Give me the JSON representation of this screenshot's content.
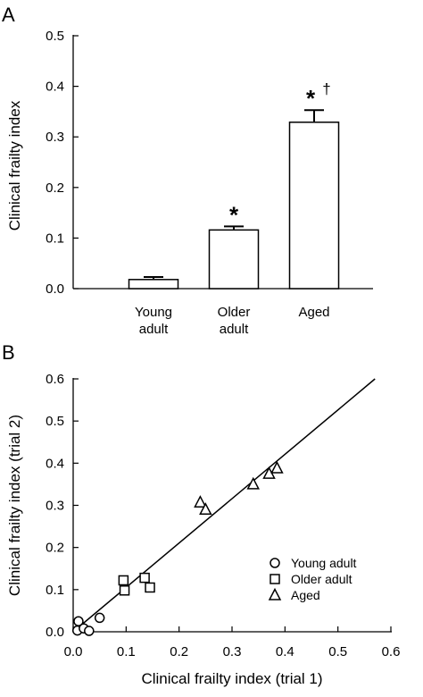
{
  "chart_data": [
    {
      "panel": "A",
      "type": "bar",
      "ylabel": "Clinical frailty index",
      "ylim": [
        0,
        0.5
      ],
      "yticks": [
        "0.0",
        "0.1",
        "0.2",
        "0.3",
        "0.4",
        "0.5"
      ],
      "categories": [
        {
          "line1": "Young",
          "line2": "adult"
        },
        {
          "line1": "Older",
          "line2": "adult"
        },
        {
          "line1": "Aged",
          "line2": ""
        }
      ],
      "values": [
        0.018,
        0.116,
        0.329
      ],
      "errors": [
        0.005,
        0.007,
        0.024
      ],
      "significance": [
        {
          "star": "",
          "dagger": ""
        },
        {
          "star": "*",
          "dagger": ""
        },
        {
          "star": "*",
          "dagger": "†"
        }
      ],
      "bar_fill": "#ffffff",
      "bar_stroke": "#000000"
    },
    {
      "panel": "B",
      "type": "scatter",
      "xlabel": "Clinical frailty index (trial 1)",
      "ylabel": "Clinical frailty index (trial 2)",
      "xlim": [
        0,
        0.6
      ],
      "ylim": [
        0,
        0.6
      ],
      "xticks": [
        "0.0",
        "0.1",
        "0.2",
        "0.3",
        "0.4",
        "0.5",
        "0.6"
      ],
      "yticks": [
        "0.0",
        "0.1",
        "0.2",
        "0.3",
        "0.4",
        "0.5",
        "0.6"
      ],
      "series": [
        {
          "name": "Young adult",
          "marker": "circle",
          "points": [
            [
              0.008,
              0.003
            ],
            [
              0.01,
              0.025
            ],
            [
              0.02,
              0.008
            ],
            [
              0.03,
              0.002
            ],
            [
              0.05,
              0.033
            ]
          ]
        },
        {
          "name": "Older adult",
          "marker": "square",
          "points": [
            [
              0.095,
              0.122
            ],
            [
              0.097,
              0.098
            ],
            [
              0.135,
              0.128
            ],
            [
              0.145,
              0.105
            ]
          ]
        },
        {
          "name": "Aged",
          "marker": "triangle",
          "points": [
            [
              0.24,
              0.307
            ],
            [
              0.25,
              0.29
            ],
            [
              0.34,
              0.35
            ],
            [
              0.37,
              0.375
            ],
            [
              0.385,
              0.388
            ]
          ]
        }
      ],
      "fit_line": {
        "x": [
          0.0,
          0.57
        ],
        "y": [
          0.0,
          0.6
        ]
      },
      "legend_position": "bottom-right"
    }
  ]
}
